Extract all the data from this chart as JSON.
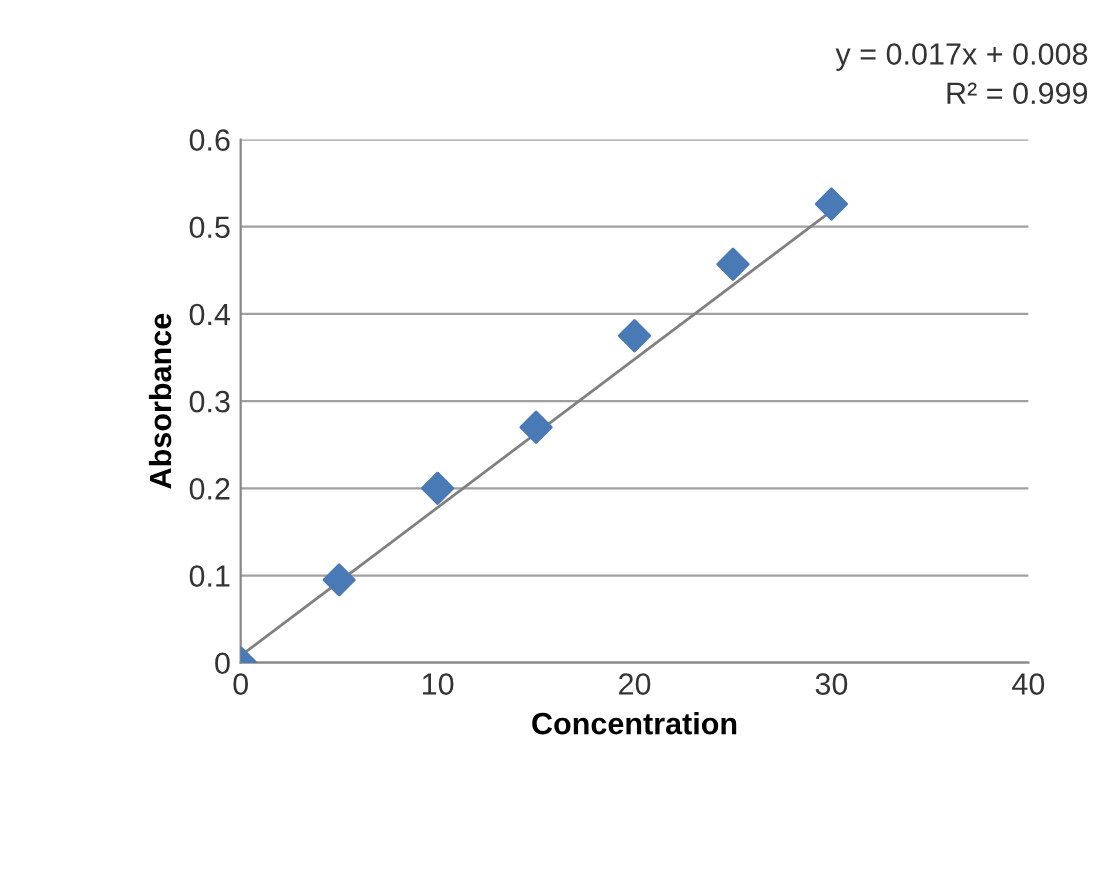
{
  "chart_data": {
    "type": "scatter",
    "xlabel": "Concentration",
    "ylabel": "Absorbance",
    "x": [
      0,
      5,
      10,
      15,
      20,
      25,
      30
    ],
    "series": [
      {
        "color": "#4a7ab5",
        "marker": "diamond",
        "values": [
          0,
          0.095,
          0.2,
          0.27,
          0.375,
          0.457,
          0.526
        ]
      },
      {
        "type": "line",
        "marker": "none",
        "color": "#808080",
        "x": [
          0,
          30
        ],
        "values": [
          0.008,
          0.518
        ]
      }
    ],
    "xlim": [
      0,
      40
    ],
    "xticks": [
      0,
      10,
      20,
      30,
      40
    ],
    "ylim": [
      0,
      0.6
    ],
    "yticks": [
      0,
      0.1,
      0.2,
      0.3,
      0.4,
      0.5,
      0.6
    ],
    "grid": "y",
    "annotations": [
      "y = 0.017x + 0.008",
      "R² = 0.999"
    ]
  }
}
